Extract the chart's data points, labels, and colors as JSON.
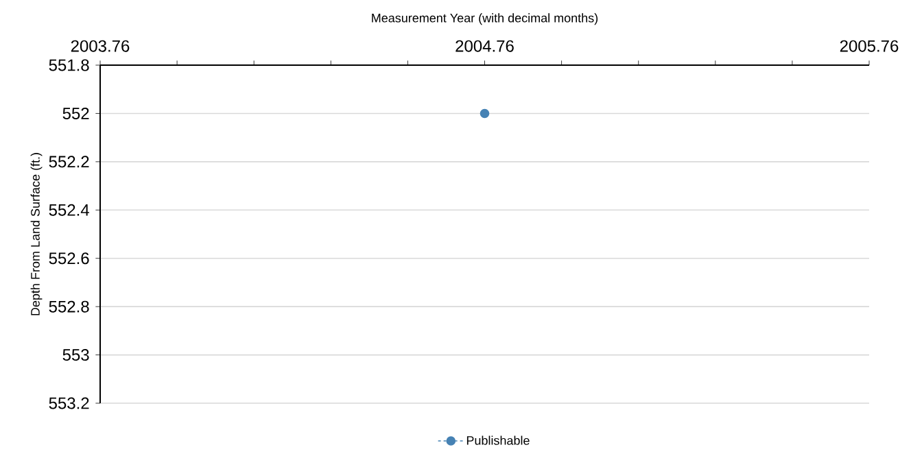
{
  "chart_data": {
    "type": "line",
    "xlabel": "Measurement Year (with decimal months)",
    "ylabel": "Depth From Land Surface (ft.)",
    "xlim": [
      2003.76,
      2005.76
    ],
    "xticks": [
      2003.76,
      2004.76,
      2005.76
    ],
    "ylim": [
      553.2,
      551.8
    ],
    "yticks": [
      551.8,
      552,
      552.2,
      552.4,
      552.6,
      552.8,
      553,
      553.2
    ],
    "grid": "y",
    "legend": "bottom",
    "marker": "circle",
    "line_style": "dashed",
    "series": [
      {
        "name": "Publishable",
        "color": "#4682b4",
        "x": [
          2004.76
        ],
        "values": [
          552
        ]
      }
    ]
  }
}
